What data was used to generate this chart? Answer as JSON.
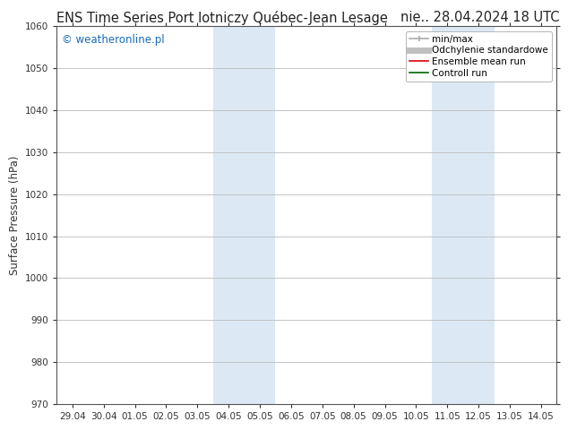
{
  "title_left": "ENS Time Series Port lotniczy Québec-Jean Lesage",
  "title_right": "nie.. 28.04.2024 18 UTC",
  "ylabel": "Surface Pressure (hPa)",
  "ylim": [
    970,
    1060
  ],
  "yticks": [
    970,
    980,
    990,
    1000,
    1010,
    1020,
    1030,
    1040,
    1050,
    1060
  ],
  "xtick_labels": [
    "29.04",
    "30.04",
    "01.05",
    "02.05",
    "03.05",
    "04.05",
    "05.05",
    "06.05",
    "07.05",
    "08.05",
    "09.05",
    "10.05",
    "11.05",
    "12.05",
    "13.05",
    "14.05"
  ],
  "xtick_positions": [
    0,
    1,
    2,
    3,
    4,
    5,
    6,
    7,
    8,
    9,
    10,
    11,
    12,
    13,
    14,
    15
  ],
  "xlim": [
    -0.5,
    15.5
  ],
  "shaded_bands": [
    {
      "x_start": 4.5,
      "x_end": 6.5,
      "color": "#dce9f5"
    },
    {
      "x_start": 11.5,
      "x_end": 13.5,
      "color": "#dce9f5"
    }
  ],
  "watermark_text": "© weatheronline.pl",
  "watermark_color": "#1a6bb5",
  "legend_items": [
    {
      "label": "min/max",
      "color": "#aaaaaa",
      "linewidth": 1.2
    },
    {
      "label": "Odchylenie standardowe",
      "color": "#c0c0c0",
      "linewidth": 5
    },
    {
      "label": "Ensemble mean run",
      "color": "#dd0000",
      "linewidth": 1.2
    },
    {
      "label": "Controll run",
      "color": "#006600",
      "linewidth": 1.2
    }
  ],
  "bg_color": "#ffffff",
  "grid_color": "#bbbbbb",
  "spine_color": "#555555",
  "title_fontsize": 10.5,
  "label_fontsize": 8.5,
  "tick_fontsize": 7.5,
  "watermark_fontsize": 8.5,
  "legend_fontsize": 7.5
}
